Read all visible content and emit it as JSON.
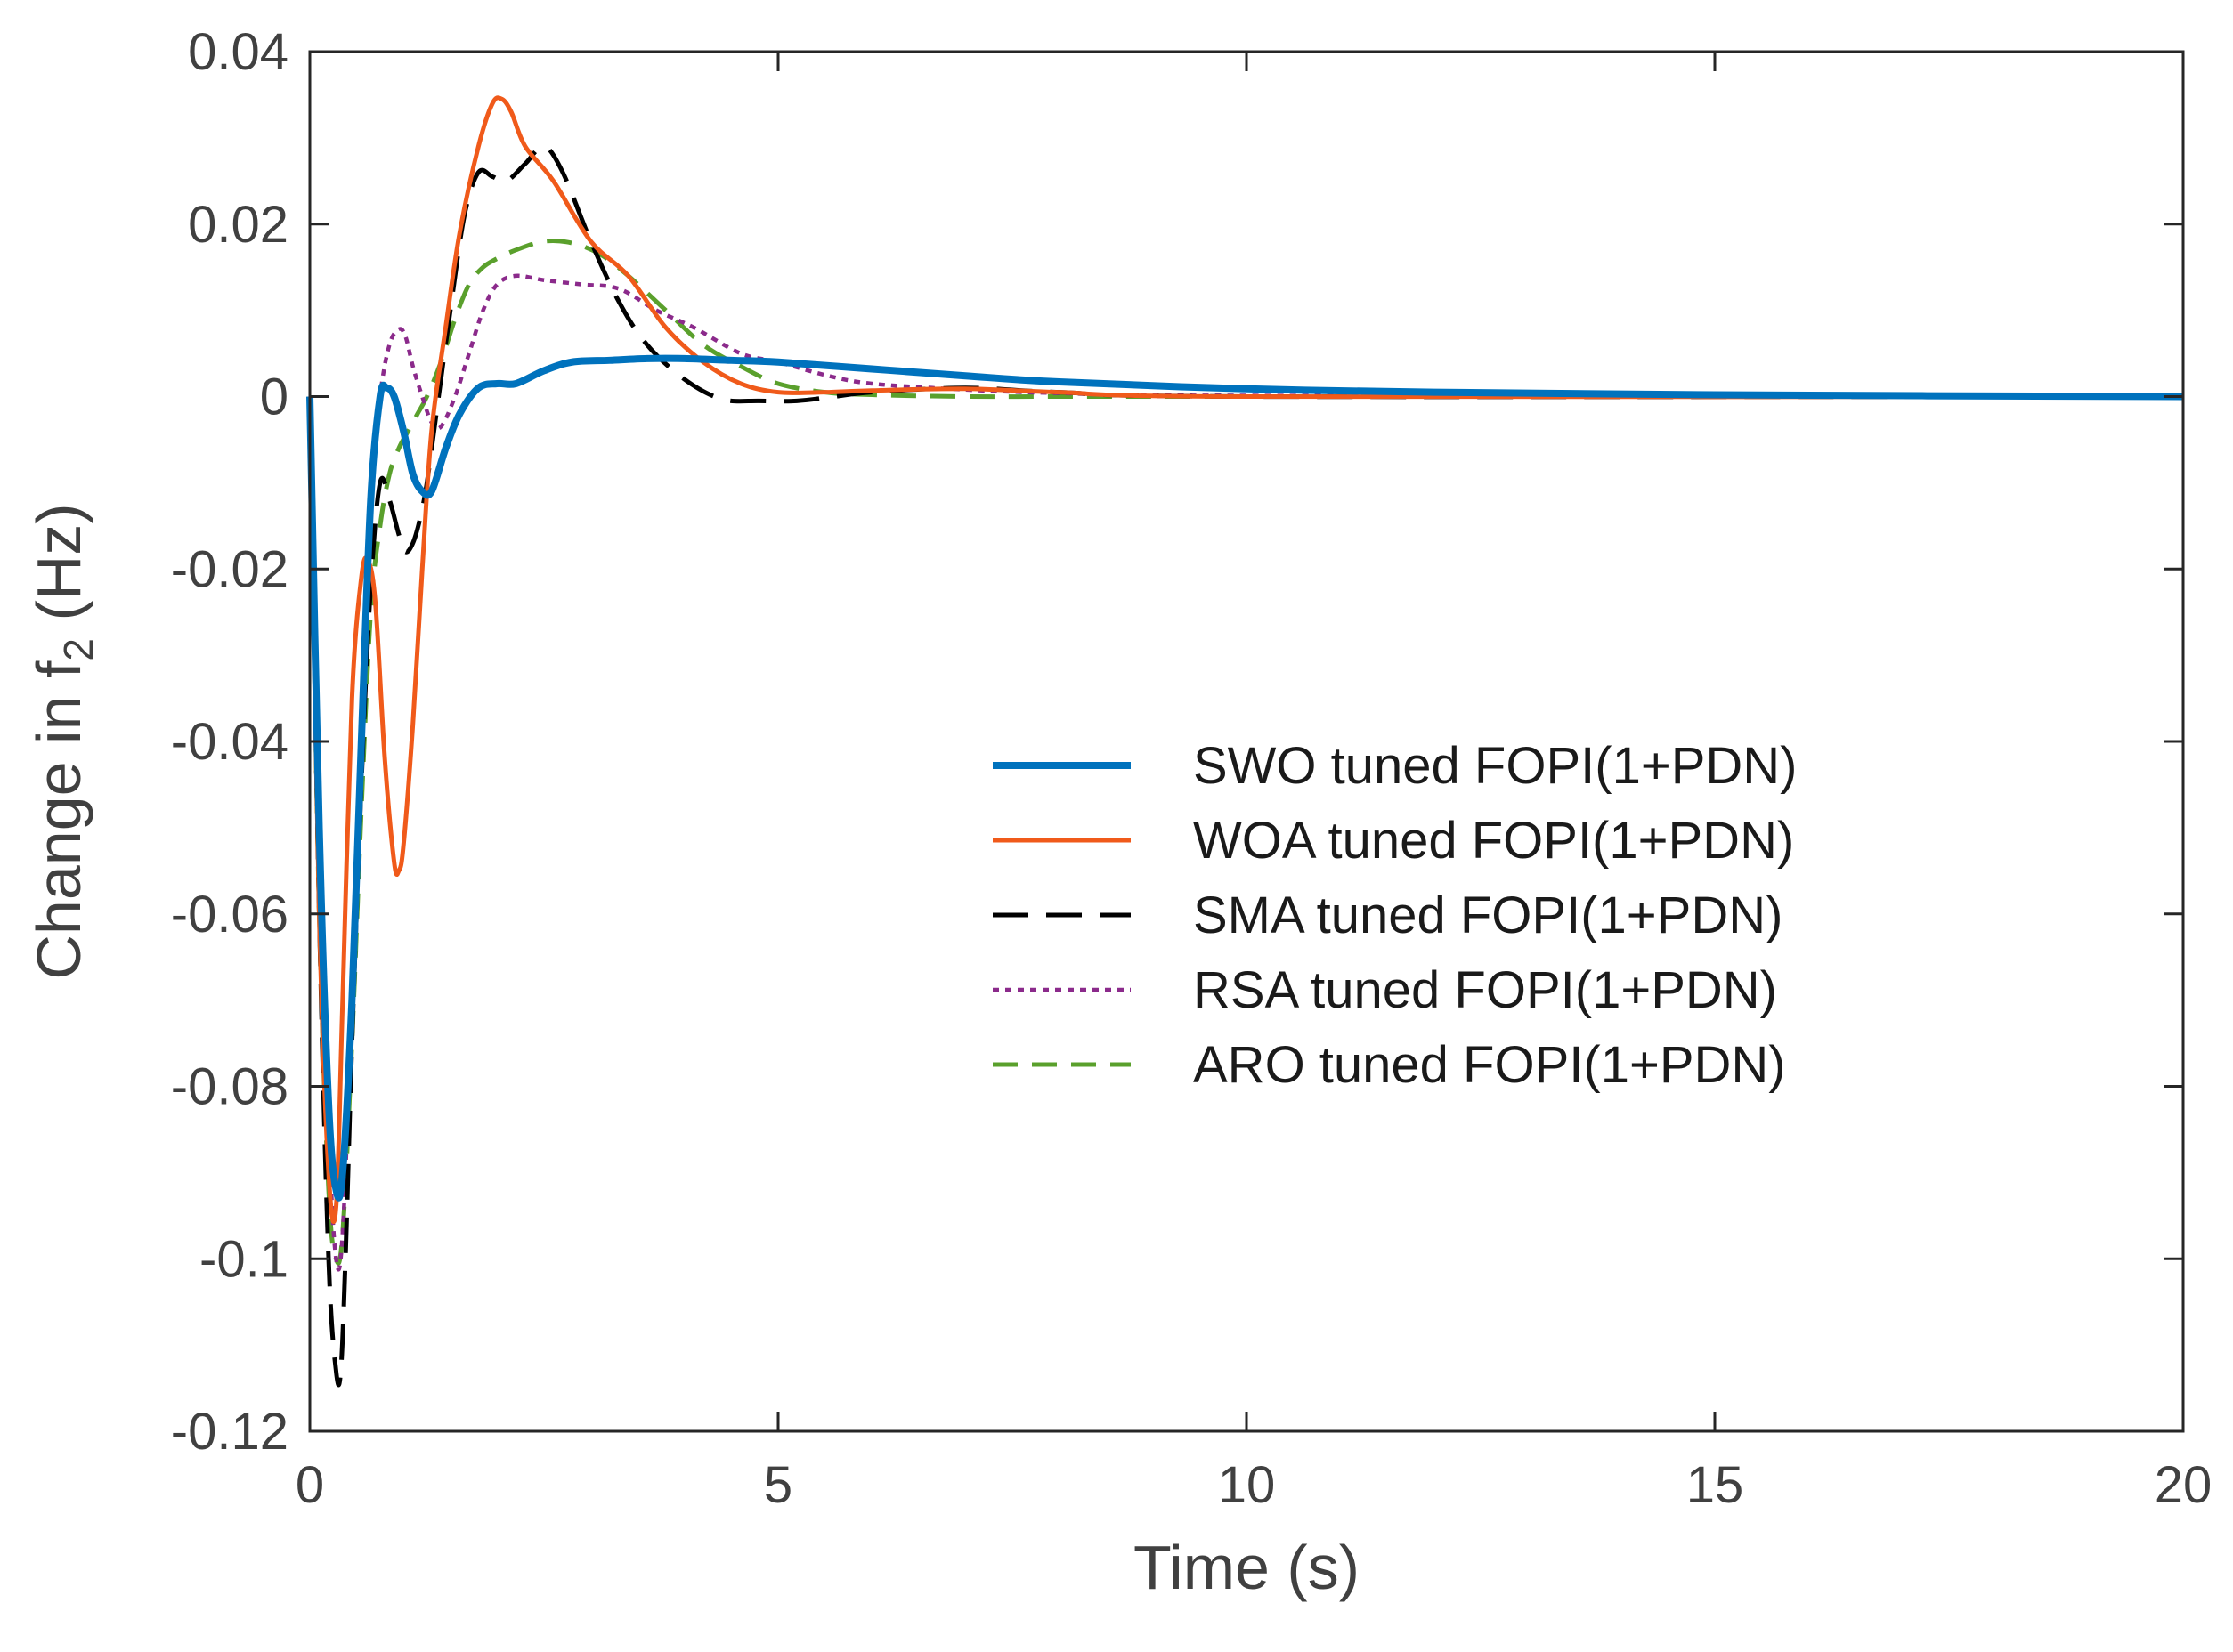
{
  "chart_data": {
    "type": "line",
    "title": "",
    "xlabel": "Time (s)",
    "ylabel_prefix": "Change in f",
    "ylabel_subscript": "2",
    "ylabel_suffix": " (Hz)",
    "xlim": [
      0,
      20
    ],
    "ylim": [
      -0.12,
      0.04
    ],
    "xticks": [
      0,
      5,
      10,
      15,
      20
    ],
    "xtick_labels": [
      "0",
      "5",
      "10",
      "15",
      "20"
    ],
    "yticks": [
      0.04,
      0.02,
      0,
      -0.02,
      -0.04,
      -0.06,
      -0.08,
      -0.1,
      -0.12
    ],
    "ytick_labels": [
      "0.04",
      "0.02",
      "0",
      "-0.02",
      "-0.04",
      "-0.06",
      "-0.08",
      "-0.1",
      "-0.12"
    ],
    "grid": false,
    "legend_position": "center-right",
    "series": [
      {
        "name": "SWO tuned FOPI(1+PDN)",
        "color": "#0072bd",
        "style": "solid-thick",
        "x": [
          0,
          0.1,
          0.2,
          0.28,
          0.35,
          0.45,
          0.55,
          0.65,
          0.75,
          0.82,
          0.9,
          1.0,
          1.1,
          1.2,
          1.3,
          1.45,
          1.6,
          1.8,
          2.0,
          2.2,
          2.5,
          2.8,
          3.2,
          3.6,
          4.0,
          4.5,
          5,
          6,
          7,
          8,
          10,
          12,
          15,
          20
        ],
        "y": [
          0,
          -0.05,
          -0.082,
          -0.092,
          -0.09,
          -0.07,
          -0.04,
          -0.012,
          0.0,
          0.001,
          0.0,
          -0.004,
          -0.009,
          -0.011,
          -0.011,
          -0.006,
          -0.002,
          0.001,
          0.0015,
          0.0015,
          0.003,
          0.004,
          0.0042,
          0.0044,
          0.0044,
          0.0042,
          0.004,
          0.0032,
          0.0024,
          0.0017,
          0.0009,
          0.0005,
          0.0002,
          0.0
        ]
      },
      {
        "name": "WOA tuned FOPI(1+PDN)",
        "color": "#f05a1a",
        "style": "solid",
        "x": [
          0,
          0.1,
          0.2,
          0.28,
          0.35,
          0.45,
          0.55,
          0.62,
          0.7,
          0.8,
          0.9,
          0.95,
          1.0,
          1.1,
          1.2,
          1.3,
          1.45,
          1.6,
          1.8,
          1.95,
          2.05,
          2.15,
          2.3,
          2.6,
          3.0,
          3.4,
          3.8,
          4.2,
          4.6,
          5.0,
          5.5,
          6,
          7,
          8,
          10,
          20
        ],
        "y": [
          0,
          -0.06,
          -0.09,
          -0.094,
          -0.07,
          -0.035,
          -0.021,
          -0.019,
          -0.024,
          -0.042,
          -0.054,
          -0.055,
          -0.052,
          -0.038,
          -0.02,
          -0.004,
          0.008,
          0.019,
          0.029,
          0.034,
          0.0345,
          0.033,
          0.029,
          0.025,
          0.018,
          0.014,
          0.008,
          0.004,
          0.0015,
          0.0005,
          0.0005,
          0.0007,
          0.0009,
          0.0005,
          0.0,
          0.0
        ]
      },
      {
        "name": "SMA tuned FOPI(1+PDN)",
        "color": "#000000",
        "style": "dashed-long",
        "x": [
          0,
          0.1,
          0.2,
          0.28,
          0.33,
          0.38,
          0.45,
          0.55,
          0.65,
          0.75,
          0.85,
          0.95,
          1.02,
          1.1,
          1.18,
          1.25,
          1.35,
          1.5,
          1.65,
          1.8,
          1.95,
          2.1,
          2.3,
          2.5,
          2.7,
          3.0,
          3.3,
          3.6,
          4.0,
          4.4,
          4.8,
          5.2,
          5.6,
          6,
          7,
          8,
          10,
          20
        ],
        "y": [
          0,
          -0.06,
          -0.1,
          -0.113,
          -0.113,
          -0.1,
          -0.075,
          -0.045,
          -0.022,
          -0.01,
          -0.012,
          -0.016,
          -0.018,
          -0.017,
          -0.014,
          -0.01,
          -0.002,
          0.01,
          0.021,
          0.026,
          0.0255,
          0.025,
          0.027,
          0.029,
          0.026,
          0.018,
          0.011,
          0.006,
          0.002,
          -0.0003,
          -0.0005,
          -0.0005,
          0.0,
          0.0005,
          0.001,
          0.0005,
          0.0,
          0.0
        ]
      },
      {
        "name": "RSA tuned FOPI(1+PDN)",
        "color": "#8b2a8b",
        "style": "dotted",
        "x": [
          0,
          0.1,
          0.2,
          0.28,
          0.35,
          0.45,
          0.55,
          0.65,
          0.75,
          0.85,
          0.95,
          1.02,
          1.1,
          1.2,
          1.3,
          1.4,
          1.55,
          1.7,
          1.85,
          2.0,
          2.2,
          2.5,
          2.9,
          3.3,
          3.7,
          4.1,
          4.6,
          5.0,
          5.5,
          6,
          7,
          8,
          10,
          20
        ],
        "y": [
          0,
          -0.05,
          -0.085,
          -0.1,
          -0.097,
          -0.07,
          -0.038,
          -0.012,
          0.0,
          0.006,
          0.0078,
          0.007,
          0.0035,
          0.0,
          -0.003,
          -0.0035,
          0.0,
          0.005,
          0.01,
          0.013,
          0.014,
          0.0135,
          0.013,
          0.0125,
          0.01,
          0.008,
          0.005,
          0.004,
          0.0025,
          0.0015,
          0.0008,
          0.0004,
          0.0001,
          0.0
        ]
      },
      {
        "name": "ARO tuned FOPI(1+PDN)",
        "color": "#5aa02c",
        "style": "dashed",
        "x": [
          0,
          0.1,
          0.2,
          0.28,
          0.35,
          0.45,
          0.55,
          0.65,
          0.75,
          0.85,
          0.95,
          1.05,
          1.15,
          1.25,
          1.4,
          1.55,
          1.7,
          1.85,
          2.0,
          2.2,
          2.5,
          2.8,
          3.1,
          3.4,
          3.8,
          4.2,
          4.6,
          5.0,
          5.5,
          6,
          7,
          8,
          10,
          20
        ],
        "y": [
          0,
          -0.06,
          -0.092,
          -0.1,
          -0.097,
          -0.075,
          -0.048,
          -0.025,
          -0.015,
          -0.009,
          -0.006,
          -0.004,
          -0.002,
          0.0,
          0.004,
          0.009,
          0.013,
          0.015,
          0.016,
          0.017,
          0.018,
          0.0178,
          0.0165,
          0.014,
          0.01,
          0.006,
          0.0035,
          0.0015,
          0.0005,
          0.0002,
          0.0,
          0.0,
          0.0,
          0.0
        ]
      }
    ]
  }
}
